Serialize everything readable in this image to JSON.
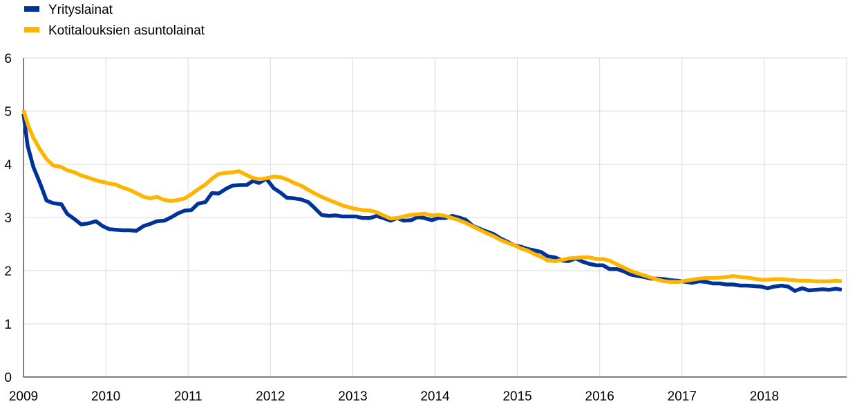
{
  "chart_data": {
    "type": "line",
    "title": "",
    "xlabel": "",
    "ylabel": "",
    "xlim": [
      2009,
      2019
    ],
    "ylim": [
      0,
      6
    ],
    "x_ticks": [
      "2009",
      "2010",
      "2011",
      "2012",
      "2013",
      "2014",
      "2015",
      "2016",
      "2017",
      "2018"
    ],
    "y_ticks": [
      "0",
      "1",
      "2",
      "3",
      "4",
      "5",
      "6"
    ],
    "grid": "vertical and horizontal",
    "legend_position": "top-left",
    "series": [
      {
        "name": "Yrityslainat",
        "color": "#003399",
        "points": [
          [
            2009.0,
            4.95
          ],
          [
            2009.05,
            4.35
          ],
          [
            2009.12,
            3.95
          ],
          [
            2009.2,
            3.65
          ],
          [
            2009.28,
            3.32
          ],
          [
            2009.36,
            3.27
          ],
          [
            2009.46,
            3.25
          ],
          [
            2009.53,
            3.07
          ],
          [
            2009.62,
            2.97
          ],
          [
            2009.7,
            2.87
          ],
          [
            2009.79,
            2.89
          ],
          [
            2009.88,
            2.93
          ],
          [
            2009.96,
            2.84
          ],
          [
            2010.04,
            2.78
          ],
          [
            2010.12,
            2.77
          ],
          [
            2010.21,
            2.76
          ],
          [
            2010.29,
            2.76
          ],
          [
            2010.37,
            2.75
          ],
          [
            2010.46,
            2.84
          ],
          [
            2010.54,
            2.88
          ],
          [
            2010.62,
            2.93
          ],
          [
            2010.71,
            2.94
          ],
          [
            2010.79,
            3.0
          ],
          [
            2010.88,
            3.08
          ],
          [
            2010.96,
            3.13
          ],
          [
            2011.04,
            3.14
          ],
          [
            2011.12,
            3.26
          ],
          [
            2011.21,
            3.29
          ],
          [
            2011.29,
            3.46
          ],
          [
            2011.37,
            3.45
          ],
          [
            2011.46,
            3.54
          ],
          [
            2011.54,
            3.6
          ],
          [
            2011.63,
            3.61
          ],
          [
            2011.71,
            3.61
          ],
          [
            2011.79,
            3.69
          ],
          [
            2011.86,
            3.65
          ],
          [
            2011.95,
            3.73
          ],
          [
            2012.04,
            3.55
          ],
          [
            2012.12,
            3.47
          ],
          [
            2012.2,
            3.37
          ],
          [
            2012.29,
            3.36
          ],
          [
            2012.37,
            3.34
          ],
          [
            2012.46,
            3.29
          ],
          [
            2012.53,
            3.19
          ],
          [
            2012.62,
            3.05
          ],
          [
            2012.71,
            3.03
          ],
          [
            2012.79,
            3.04
          ],
          [
            2012.87,
            3.02
          ],
          [
            2012.96,
            3.02
          ],
          [
            2013.04,
            3.02
          ],
          [
            2013.12,
            2.99
          ],
          [
            2013.21,
            2.99
          ],
          [
            2013.29,
            3.03
          ],
          [
            2013.37,
            2.99
          ],
          [
            2013.46,
            2.94
          ],
          [
            2013.54,
            2.99
          ],
          [
            2013.62,
            2.94
          ],
          [
            2013.71,
            2.95
          ],
          [
            2013.79,
            3.01
          ],
          [
            2013.87,
            2.99
          ],
          [
            2013.96,
            2.95
          ],
          [
            2014.04,
            2.99
          ],
          [
            2014.12,
            2.99
          ],
          [
            2014.21,
            3.03
          ],
          [
            2014.29,
            3.0
          ],
          [
            2014.37,
            2.96
          ],
          [
            2014.46,
            2.84
          ],
          [
            2014.54,
            2.79
          ],
          [
            2014.62,
            2.74
          ],
          [
            2014.71,
            2.69
          ],
          [
            2014.79,
            2.61
          ],
          [
            2014.87,
            2.55
          ],
          [
            2014.96,
            2.48
          ],
          [
            2015.04,
            2.45
          ],
          [
            2015.12,
            2.41
          ],
          [
            2015.21,
            2.38
          ],
          [
            2015.29,
            2.35
          ],
          [
            2015.37,
            2.27
          ],
          [
            2015.46,
            2.25
          ],
          [
            2015.54,
            2.19
          ],
          [
            2015.62,
            2.18
          ],
          [
            2015.71,
            2.23
          ],
          [
            2015.79,
            2.17
          ],
          [
            2015.87,
            2.13
          ],
          [
            2015.96,
            2.1
          ],
          [
            2016.04,
            2.1
          ],
          [
            2016.12,
            2.03
          ],
          [
            2016.21,
            2.03
          ],
          [
            2016.29,
            1.99
          ],
          [
            2016.37,
            1.93
          ],
          [
            2016.46,
            1.9
          ],
          [
            2016.54,
            1.88
          ],
          [
            2016.62,
            1.85
          ],
          [
            2016.71,
            1.85
          ],
          [
            2016.79,
            1.84
          ],
          [
            2016.87,
            1.82
          ],
          [
            2016.96,
            1.81
          ],
          [
            2017.04,
            1.79
          ],
          [
            2017.12,
            1.77
          ],
          [
            2017.21,
            1.8
          ],
          [
            2017.29,
            1.79
          ],
          [
            2017.37,
            1.76
          ],
          [
            2017.46,
            1.76
          ],
          [
            2017.54,
            1.74
          ],
          [
            2017.62,
            1.74
          ],
          [
            2017.71,
            1.72
          ],
          [
            2017.79,
            1.72
          ],
          [
            2017.87,
            1.71
          ],
          [
            2017.96,
            1.7
          ],
          [
            2018.04,
            1.67
          ],
          [
            2018.12,
            1.7
          ],
          [
            2018.21,
            1.72
          ],
          [
            2018.29,
            1.7
          ],
          [
            2018.37,
            1.62
          ],
          [
            2018.46,
            1.67
          ],
          [
            2018.54,
            1.63
          ],
          [
            2018.62,
            1.64
          ],
          [
            2018.71,
            1.65
          ],
          [
            2018.79,
            1.64
          ],
          [
            2018.87,
            1.66
          ],
          [
            2018.94,
            1.64
          ]
        ]
      },
      {
        "name": "Kotitalouksien asuntolainat",
        "color": "#ffb400",
        "points": [
          [
            2009.0,
            5.02
          ],
          [
            2009.06,
            4.72
          ],
          [
            2009.12,
            4.5
          ],
          [
            2009.2,
            4.28
          ],
          [
            2009.28,
            4.1
          ],
          [
            2009.36,
            3.98
          ],
          [
            2009.46,
            3.95
          ],
          [
            2009.53,
            3.89
          ],
          [
            2009.62,
            3.85
          ],
          [
            2009.7,
            3.79
          ],
          [
            2009.79,
            3.75
          ],
          [
            2009.88,
            3.7
          ],
          [
            2009.96,
            3.67
          ],
          [
            2010.04,
            3.64
          ],
          [
            2010.12,
            3.62
          ],
          [
            2010.21,
            3.56
          ],
          [
            2010.29,
            3.52
          ],
          [
            2010.37,
            3.46
          ],
          [
            2010.46,
            3.39
          ],
          [
            2010.54,
            3.36
          ],
          [
            2010.62,
            3.39
          ],
          [
            2010.71,
            3.33
          ],
          [
            2010.79,
            3.31
          ],
          [
            2010.88,
            3.33
          ],
          [
            2010.96,
            3.36
          ],
          [
            2011.04,
            3.44
          ],
          [
            2011.12,
            3.53
          ],
          [
            2011.21,
            3.62
          ],
          [
            2011.29,
            3.73
          ],
          [
            2011.37,
            3.82
          ],
          [
            2011.46,
            3.84
          ],
          [
            2011.54,
            3.85
          ],
          [
            2011.62,
            3.87
          ],
          [
            2011.71,
            3.8
          ],
          [
            2011.79,
            3.74
          ],
          [
            2011.87,
            3.72
          ],
          [
            2011.96,
            3.74
          ],
          [
            2012.04,
            3.77
          ],
          [
            2012.12,
            3.76
          ],
          [
            2012.21,
            3.71
          ],
          [
            2012.29,
            3.65
          ],
          [
            2012.37,
            3.6
          ],
          [
            2012.46,
            3.52
          ],
          [
            2012.54,
            3.45
          ],
          [
            2012.62,
            3.39
          ],
          [
            2012.71,
            3.33
          ],
          [
            2012.79,
            3.28
          ],
          [
            2012.87,
            3.23
          ],
          [
            2012.96,
            3.19
          ],
          [
            2013.04,
            3.16
          ],
          [
            2013.12,
            3.14
          ],
          [
            2013.21,
            3.13
          ],
          [
            2013.29,
            3.1
          ],
          [
            2013.37,
            3.04
          ],
          [
            2013.46,
            2.98
          ],
          [
            2013.54,
            2.99
          ],
          [
            2013.62,
            3.02
          ],
          [
            2013.71,
            3.05
          ],
          [
            2013.79,
            3.06
          ],
          [
            2013.87,
            3.07
          ],
          [
            2013.96,
            3.04
          ],
          [
            2014.04,
            3.05
          ],
          [
            2014.12,
            3.03
          ],
          [
            2014.21,
            2.99
          ],
          [
            2014.29,
            2.95
          ],
          [
            2014.37,
            2.9
          ],
          [
            2014.46,
            2.83
          ],
          [
            2014.54,
            2.77
          ],
          [
            2014.62,
            2.71
          ],
          [
            2014.71,
            2.65
          ],
          [
            2014.79,
            2.58
          ],
          [
            2014.87,
            2.53
          ],
          [
            2014.96,
            2.48
          ],
          [
            2015.04,
            2.42
          ],
          [
            2015.12,
            2.38
          ],
          [
            2015.21,
            2.31
          ],
          [
            2015.29,
            2.26
          ],
          [
            2015.37,
            2.19
          ],
          [
            2015.46,
            2.18
          ],
          [
            2015.54,
            2.2
          ],
          [
            2015.62,
            2.23
          ],
          [
            2015.71,
            2.24
          ],
          [
            2015.79,
            2.25
          ],
          [
            2015.87,
            2.25
          ],
          [
            2015.96,
            2.22
          ],
          [
            2016.04,
            2.22
          ],
          [
            2016.12,
            2.19
          ],
          [
            2016.21,
            2.12
          ],
          [
            2016.29,
            2.06
          ],
          [
            2016.37,
            2.0
          ],
          [
            2016.46,
            1.95
          ],
          [
            2016.54,
            1.91
          ],
          [
            2016.62,
            1.87
          ],
          [
            2016.71,
            1.83
          ],
          [
            2016.79,
            1.8
          ],
          [
            2016.87,
            1.79
          ],
          [
            2016.96,
            1.79
          ],
          [
            2017.04,
            1.81
          ],
          [
            2017.12,
            1.83
          ],
          [
            2017.21,
            1.85
          ],
          [
            2017.29,
            1.86
          ],
          [
            2017.37,
            1.86
          ],
          [
            2017.46,
            1.87
          ],
          [
            2017.54,
            1.88
          ],
          [
            2017.62,
            1.9
          ],
          [
            2017.71,
            1.88
          ],
          [
            2017.79,
            1.87
          ],
          [
            2017.87,
            1.85
          ],
          [
            2017.96,
            1.83
          ],
          [
            2018.04,
            1.83
          ],
          [
            2018.12,
            1.84
          ],
          [
            2018.21,
            1.84
          ],
          [
            2018.29,
            1.83
          ],
          [
            2018.37,
            1.82
          ],
          [
            2018.46,
            1.81
          ],
          [
            2018.54,
            1.81
          ],
          [
            2018.62,
            1.8
          ],
          [
            2018.71,
            1.8
          ],
          [
            2018.79,
            1.8
          ],
          [
            2018.87,
            1.81
          ],
          [
            2018.94,
            1.8
          ]
        ]
      }
    ]
  }
}
